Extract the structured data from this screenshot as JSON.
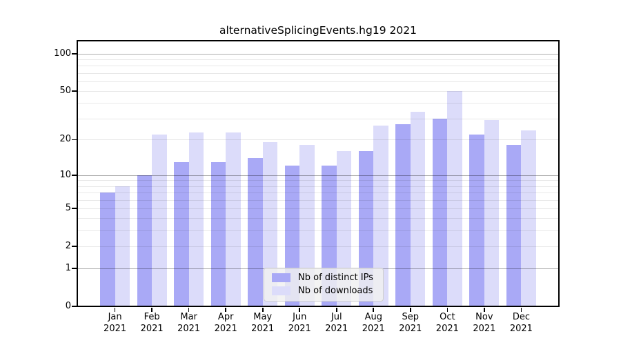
{
  "title": "alternativeSplicingEvents.hg19 2021",
  "chart_data": {
    "type": "bar",
    "categories": [
      "Jan",
      "Feb",
      "Mar",
      "Apr",
      "May",
      "Jun",
      "Jul",
      "Aug",
      "Sep",
      "Oct",
      "Nov",
      "Dec"
    ],
    "category_year": "2021",
    "series": [
      {
        "key": "ips",
        "name": "Nb of distinct IPs",
        "color": "#a9a9f6",
        "values": [
          7,
          10,
          13,
          13,
          14,
          12,
          12,
          16,
          27,
          30,
          22,
          18
        ]
      },
      {
        "key": "downloads",
        "name": "Nb of downloads",
        "color": "#dcdcfa",
        "values": [
          8,
          22,
          23,
          23,
          19,
          18,
          16,
          26,
          34,
          50,
          29,
          24
        ]
      }
    ],
    "yscale": "log1p",
    "ylim": [
      0,
      127
    ],
    "ytick_labels": [
      {
        "label": "100",
        "value": 100
      },
      {
        "label": "50",
        "value": 50
      },
      {
        "label": "20",
        "value": 20
      },
      {
        "label": "10",
        "value": 10
      },
      {
        "label": "5",
        "value": 5
      },
      {
        "label": "2",
        "value": 2
      },
      {
        "label": "1",
        "value": 1
      },
      {
        "label": "0",
        "value": 0
      }
    ],
    "gridlines": {
      "major": [
        1,
        10,
        100
      ],
      "light": [
        2,
        3,
        4,
        5,
        6,
        7,
        8,
        9,
        20,
        30,
        40,
        50,
        60,
        70,
        80,
        90
      ]
    },
    "grid": "on",
    "legend_position": "lower center"
  },
  "colors": {
    "background": "#ffffff",
    "frame": "#000000",
    "bar_ips": "#a9a9f6",
    "bar_downloads": "#dcdcfa"
  }
}
